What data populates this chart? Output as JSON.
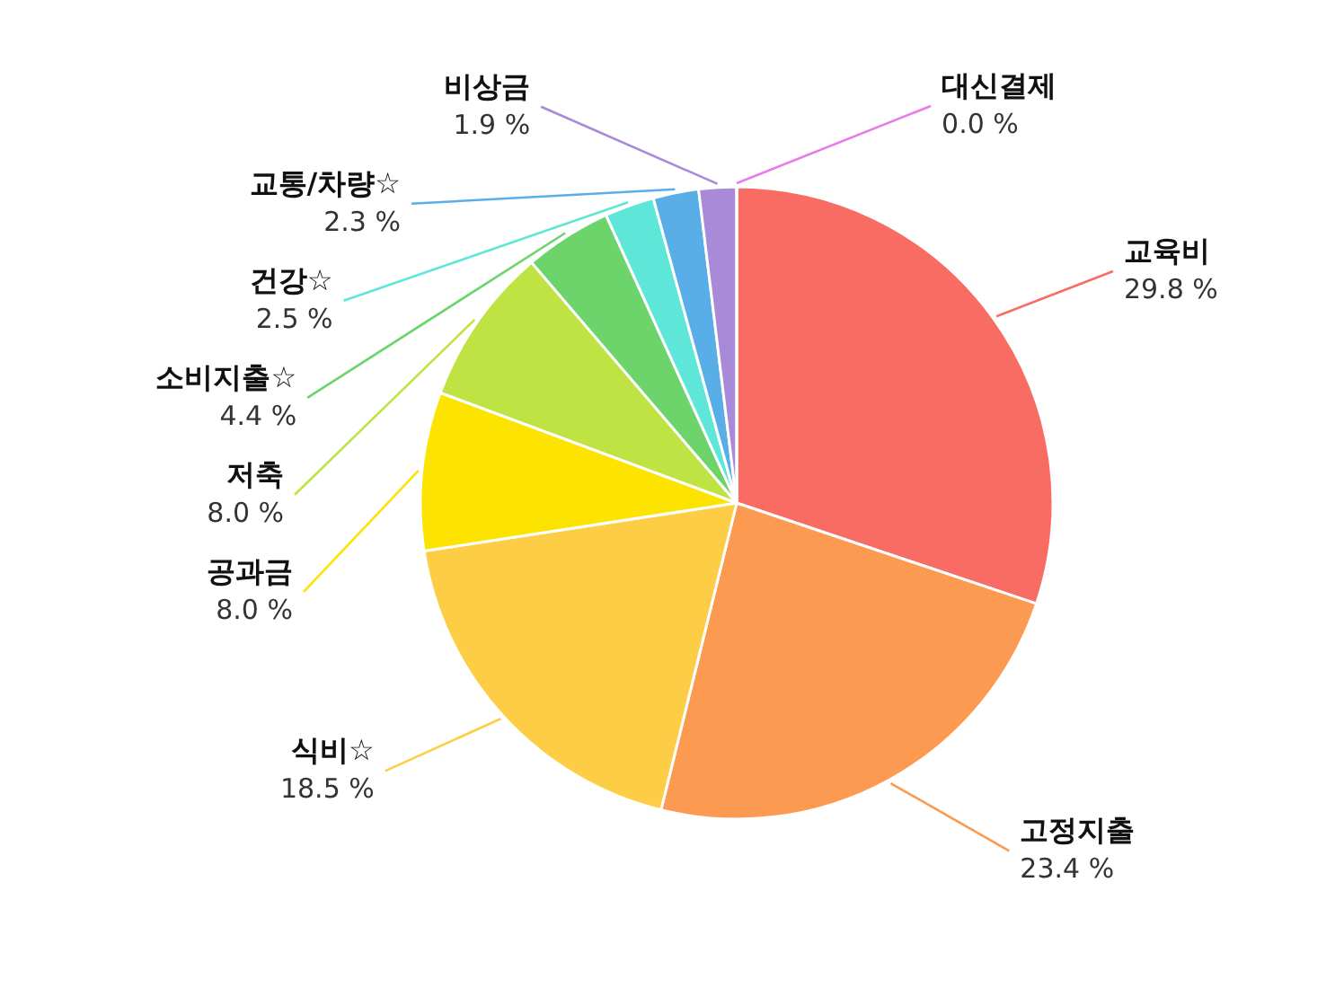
{
  "chart_data": {
    "type": "pie",
    "categories": [
      "교육비",
      "고정지출",
      "식비☆",
      "공과금",
      "저축",
      "소비지출☆",
      "건강☆",
      "교통/차량☆",
      "비상금",
      "대신결제"
    ],
    "values": [
      29.8,
      23.4,
      18.5,
      8.0,
      8.0,
      4.4,
      2.5,
      2.3,
      1.9,
      0.0
    ],
    "value_labels": [
      "29.8 %",
      "23.4 %",
      "18.5 %",
      "8.0 %",
      "8.0 %",
      "4.4 %",
      "2.5 %",
      "2.3 %",
      "1.9 %",
      "0.0 %"
    ],
    "colors": [
      "#f96c64",
      "#fb9a50",
      "#fdcd45",
      "#fde300",
      "#bee343",
      "#6cd46a",
      "#5ee6d8",
      "#5aaee8",
      "#a98ad8",
      "#e87de8"
    ]
  }
}
